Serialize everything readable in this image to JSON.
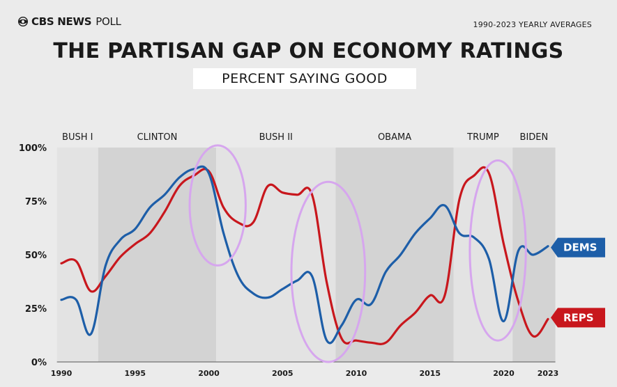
{
  "header": {
    "brand_main": "CBS NEWS",
    "brand_sub": "POLL",
    "range_note": "1990-2023 YEARLY AVERAGES",
    "title": "THE PARTISAN GAP ON ECONOMY RATINGS",
    "subtitle": "PERCENT SAYING GOOD"
  },
  "colors": {
    "dems": "#1d5ea8",
    "reps": "#c8171d",
    "dem_era": "#d3d3d3",
    "rep_era": "#e3e3e3",
    "highlight": "#d6a6ee"
  },
  "chart_data": {
    "type": "line",
    "title": "THE PARTISAN GAP ON ECONOMY RATINGS",
    "subtitle": "PERCENT SAYING GOOD",
    "ylim": [
      0,
      100
    ],
    "xlim": [
      1990,
      2023.5
    ],
    "ytick_labels": [
      "0%",
      "25%",
      "50%",
      "75%",
      "100%"
    ],
    "ytick_values": [
      0,
      25,
      50,
      75,
      100
    ],
    "xtick_labels": [
      "1990",
      "1995",
      "2000",
      "2005",
      "2010",
      "2015",
      "2020",
      "2023"
    ],
    "xtick_values": [
      1990,
      1995,
      2000,
      2005,
      2010,
      2015,
      2020,
      2023
    ],
    "eras": [
      {
        "label": "BUSH I",
        "start": 1989.7,
        "end": 1992.5,
        "party": "R"
      },
      {
        "label": "CLINTON",
        "start": 1992.5,
        "end": 2000.5,
        "party": "D"
      },
      {
        "label": "BUSH II",
        "start": 2000.5,
        "end": 2008.6,
        "party": "R"
      },
      {
        "label": "OBAMA",
        "start": 2008.6,
        "end": 2016.6,
        "party": "D"
      },
      {
        "label": "TRUMP",
        "start": 2016.6,
        "end": 2020.6,
        "party": "R"
      },
      {
        "label": "BIDEN",
        "start": 2020.6,
        "end": 2023.5,
        "party": "D"
      }
    ],
    "series": [
      {
        "name": "DEMS",
        "x": [
          1990,
          1991,
          1992,
          1993,
          1994,
          1995,
          1996,
          1997,
          1998,
          1999,
          2000,
          2001,
          2002,
          2003,
          2004,
          2005,
          2006,
          2007,
          2008,
          2009,
          2010,
          2011,
          2012,
          2013,
          2014,
          2015,
          2016,
          2017,
          2018,
          2019,
          2020,
          2021,
          2022,
          2023
        ],
        "values": [
          29,
          29,
          13,
          45,
          57,
          62,
          72,
          78,
          86,
          90,
          88,
          60,
          40,
          32,
          30,
          34,
          38,
          40,
          10,
          17,
          29,
          27,
          42,
          50,
          60,
          67,
          73,
          60,
          58,
          48,
          19,
          52,
          50,
          54
        ]
      },
      {
        "name": "REPS",
        "x": [
          1990,
          1991,
          1992,
          1993,
          1994,
          1995,
          1996,
          1997,
          1998,
          1999,
          2000,
          2001,
          2002,
          2003,
          2004,
          2005,
          2006,
          2007,
          2008,
          2009,
          2010,
          2011,
          2012,
          2013,
          2014,
          2015,
          2016,
          2017,
          2018,
          2019,
          2020,
          2021,
          2022,
          2023
        ],
        "values": [
          46,
          47,
          33,
          40,
          49,
          55,
          60,
          70,
          82,
          87,
          89,
          72,
          65,
          65,
          82,
          79,
          78,
          78,
          37,
          11,
          10,
          9,
          9,
          17,
          23,
          31,
          31,
          76,
          87,
          88,
          55,
          28,
          12,
          20
        ]
      }
    ],
    "highlights": [
      {
        "cx": 2000.6,
        "cy": 73,
        "rx": 1.9,
        "ry": 28
      },
      {
        "cx": 2008.1,
        "cy": 42,
        "rx": 2.5,
        "ry": 42
      },
      {
        "cx": 2019.6,
        "cy": 52,
        "rx": 1.9,
        "ry": 42
      }
    ],
    "grid": false,
    "legend": "inline-right"
  }
}
